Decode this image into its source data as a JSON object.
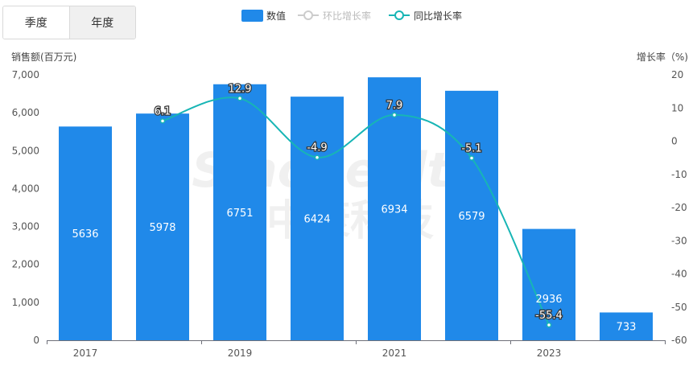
{
  "tabs": [
    {
      "label": "季度",
      "active": false
    },
    {
      "label": "年度",
      "active": true
    }
  ],
  "legend": {
    "items": [
      {
        "label": "数值",
        "enabled": true,
        "color": "#2089e9",
        "icon": "bar-swatch"
      },
      {
        "label": "环比增长率",
        "enabled": false,
        "color": "#cccccc",
        "icon": "line-dot-swatch"
      },
      {
        "label": "同比增长率",
        "enabled": true,
        "color": "#17b5b5",
        "icon": "line-dot-swatch"
      }
    ]
  },
  "watermark": {
    "line1": "Sinohealth",
    "line2": "中康科技"
  },
  "chart_data": {
    "type": "bar",
    "categories": [
      "2017H1",
      "2017H2",
      "2019H1",
      "2019H2",
      "2021H1",
      "2021H2",
      "2023H1",
      "2023H2"
    ],
    "x_tick_labels": [
      "2017",
      "2019",
      "2021",
      "2023"
    ],
    "y_left": {
      "label": "销售额(百万元)",
      "min": 0,
      "max": 7000,
      "ticks": [
        0,
        1000,
        2000,
        3000,
        4000,
        5000,
        6000,
        7000
      ],
      "tick_labels": [
        "0",
        "1,000",
        "2,000",
        "3,000",
        "4,000",
        "5,000",
        "6,000",
        "7,000"
      ]
    },
    "y_right": {
      "label": "增长率（%)",
      "min": -60,
      "max": 20,
      "ticks": [
        -60,
        -50,
        -40,
        -30,
        -20,
        -10,
        0,
        10,
        20
      ]
    },
    "series": [
      {
        "name": "数值",
        "type": "bar",
        "axis": "left",
        "color": "#2089e9",
        "values": [
          5636,
          5978,
          6751,
          6424,
          6934,
          6579,
          2936,
          733
        ]
      },
      {
        "name": "同比增长率",
        "type": "line",
        "axis": "right",
        "color": "#17b5b5",
        "smooth": true,
        "values": [
          null,
          6.1,
          12.9,
          -4.9,
          7.9,
          -5.1,
          -55.4,
          null
        ]
      }
    ],
    "grid": false,
    "legend_position": "top-center"
  }
}
